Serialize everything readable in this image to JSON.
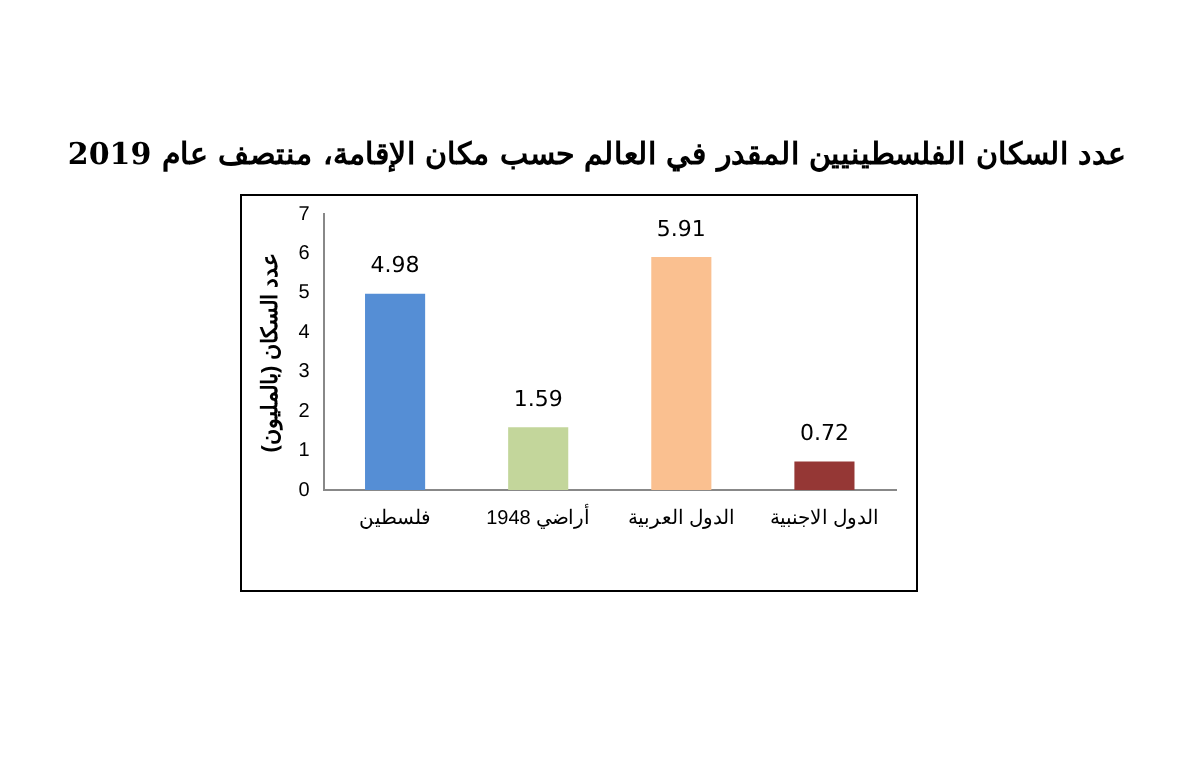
{
  "chart_data": {
    "type": "bar",
    "title": "عدد السكان الفلسطينيين المقدر في العالم حسب مكان الإقامة، منتصف عام 2019",
    "ylabel": "عدد السكان (بالمليون)",
    "categories": [
      "فلسطين",
      "أراضي 1948",
      "الدول العربية",
      "الدول الاجنبية"
    ],
    "values": [
      4.98,
      1.59,
      5.91,
      0.72
    ],
    "colors": [
      "#558ed5",
      "#c3d69b",
      "#fac090",
      "#953735"
    ],
    "ylim": [
      0,
      7
    ],
    "yticks": [
      0,
      1,
      2,
      3,
      4,
      5,
      6,
      7
    ],
    "grid": false,
    "legend": false,
    "data_labels": true
  }
}
